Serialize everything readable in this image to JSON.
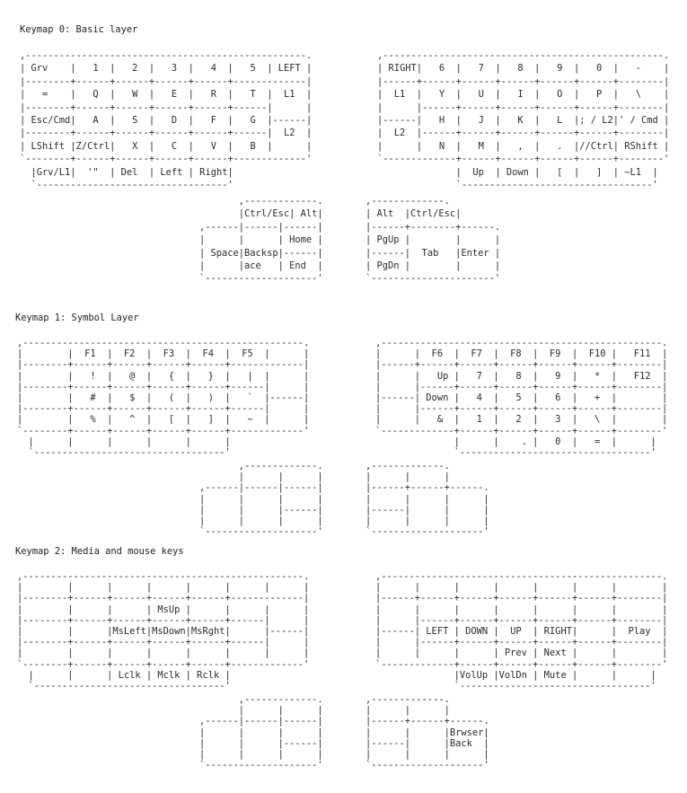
{
  "sections": [
    {
      "title": "Keymap 0: Basic layer",
      "left": [
        ",--------------------------------------------------.",
        "| Grv    |   1  |   2  |   3  |   4  |   5  | LEFT |",
        "|--------+------+------+------+------+-------------|",
        "|   =    |   Q  |   W  |   E  |   R  |   T  |  L1  |",
        "|--------+------+------+------+------+------|      |",
        "| Esc/Cmd|   A  |   S  |   D  |   F  |   G  |------|",
        "|--------+------+------+------+------+------|  L2  |",
        "| LShift |Z/Ctrl|   X  |   C  |   V  |   B  |      |",
        "`--------+------+------+------+------+-------------'",
        "  |Grv/L1|  '\"  | Del  | Left | Right|",
        "  `----------------------------------'"
      ],
      "right": [
        ",--------------------------------------------------.",
        "| RIGHT|   6  |   7  |   8  |   9  |   0  |   -    |",
        "|------+------+------+------+------+------+--------|",
        "|  L1  |   Y  |   U  |   I  |   O  |   P  |   \\    |",
        "|      |------+------+------+------+------+--------|",
        "|------|   H  |   J  |   K  |   L  |; / L2|' / Cmd |",
        "|  L2  |------+------+------+------+------+--------|",
        "|      |   N  |   M  |   ,  |   .  |//Ctrl| RShift |",
        "`-------------+------+------+------+------+--------'",
        "              |  Up  | Down |   [  |   ]  | ~L1  |",
        "              `----------------------------------'"
      ],
      "left_thumb": [
        "       ,-------------.",
        "       |Ctrl/Esc| Alt|",
        ",------|------|------|",
        "|      |      | Home |",
        "| Space|Backsp|------|",
        "|      |ace   | End  |",
        "`--------------------'"
      ],
      "right_thumb": [
        ",-------------.",
        "| Alt  |Ctrl/Esc|",
        "|------+--------+------.",
        "| PgUp |        |      |",
        "|------|  Tab   |Enter |",
        "| PgDn |        |      |",
        "`----------------------'"
      ]
    },
    {
      "title": "Keymap 1: Symbol Layer",
      "left": [
        ",--------------------------------------------------.",
        "|        |  F1  |  F2  |  F3  |  F4  |  F5  |      |",
        "|--------+------+------+------+------+-------------|",
        "|        |   !  |   @  |   {  |   }  |   |  |      |",
        "|--------+------+------+------+------+------|      |",
        "|        |   #  |   $  |   (  |   )  |   `  |------|",
        "|--------+------+------+------+------+------|      |",
        "|        |   %  |   ^  |   [  |   ]  |   ~  |      |",
        "`--------+------+------+------+------+-------------'",
        "  |      |      |      |      |      |",
        "  `----------------------------------'"
      ],
      "right": [
        ",--------------------------------------------------.",
        "|      |  F6  |  F7  |  F8  |  F9  |  F10 |   F11  |",
        "|------+------+------+------+------+------+--------|",
        "|      |   Up |   7  |   8  |   9  |   *  |   F12  |",
        "|      |------+------+------+------+------+--------|",
        "|------| Down |   4  |   5  |   6  |   +  |        |",
        "|      |------+------+------+------+------+--------|",
        "|      |   &  |   1  |   2  |   3  |   \\  |        |",
        "`-------------+------+------+------+------+--------'",
        "              |      |    . |   0  |   =  |      |",
        "              `----------------------------------'"
      ],
      "left_thumb": [
        "       ,-------------.",
        "       |      |      |",
        ",------|------|------|",
        "|      |      |      |",
        "|      |      |------|",
        "|      |      |      |",
        "`--------------------'"
      ],
      "right_thumb": [
        ",-------------.",
        "|      |      |",
        "|------+------+------.",
        "|      |      |      |",
        "|------|      |      |",
        "|      |      |      |",
        "`--------------------'"
      ]
    },
    {
      "title": "Keymap 2: Media and mouse keys",
      "left": [
        ",--------------------------------------------------.",
        "|        |      |      |      |      |      |      |",
        "|--------+------+------+------+------+-------------|",
        "|        |      |      | MsUp |      |      |      |",
        "|--------+------+------+------+------+------|      |",
        "|        |      |MsLeft|MsDown|MsRght|      |------|",
        "|--------+------+------+------+------+------|      |",
        "|        |      |      |      |      |      |      |",
        "`--------+------+------+------+------+-------------'",
        "  |      |      | Lclk | Mclk | Rclk |",
        "  `----------------------------------'"
      ],
      "right": [
        ",--------------------------------------------------.",
        "|      |      |      |      |      |      |        |",
        "|------+------+------+------+------+------+--------|",
        "|      |      |      |      |      |      |        |",
        "|      |------+------+------+------+------+--------|",
        "|------| LEFT | DOWN |  UP  | RIGHT|      |  Play  |",
        "|      |------+------+------+------+------+--------|",
        "|      |      |      | Prev | Next |      |        |",
        "`-------------+------+------+------+------+--------'",
        "              |VolUp |VolDn | Mute |      |      |",
        "              `----------------------------------'"
      ],
      "left_thumb": [
        "       ,-------------.",
        "       |      |      |",
        ",------|------|------|",
        "|      |      |      |",
        "|      |      |------|",
        "|      |      |      |",
        "`--------------------'"
      ],
      "right_thumb": [
        ",-------------.",
        "|      |      |",
        "|------+------+------.",
        "|      |      |Brwser|",
        "|------|      |Back  |",
        "|      |      |      |",
        "`--------------------'"
      ]
    }
  ]
}
